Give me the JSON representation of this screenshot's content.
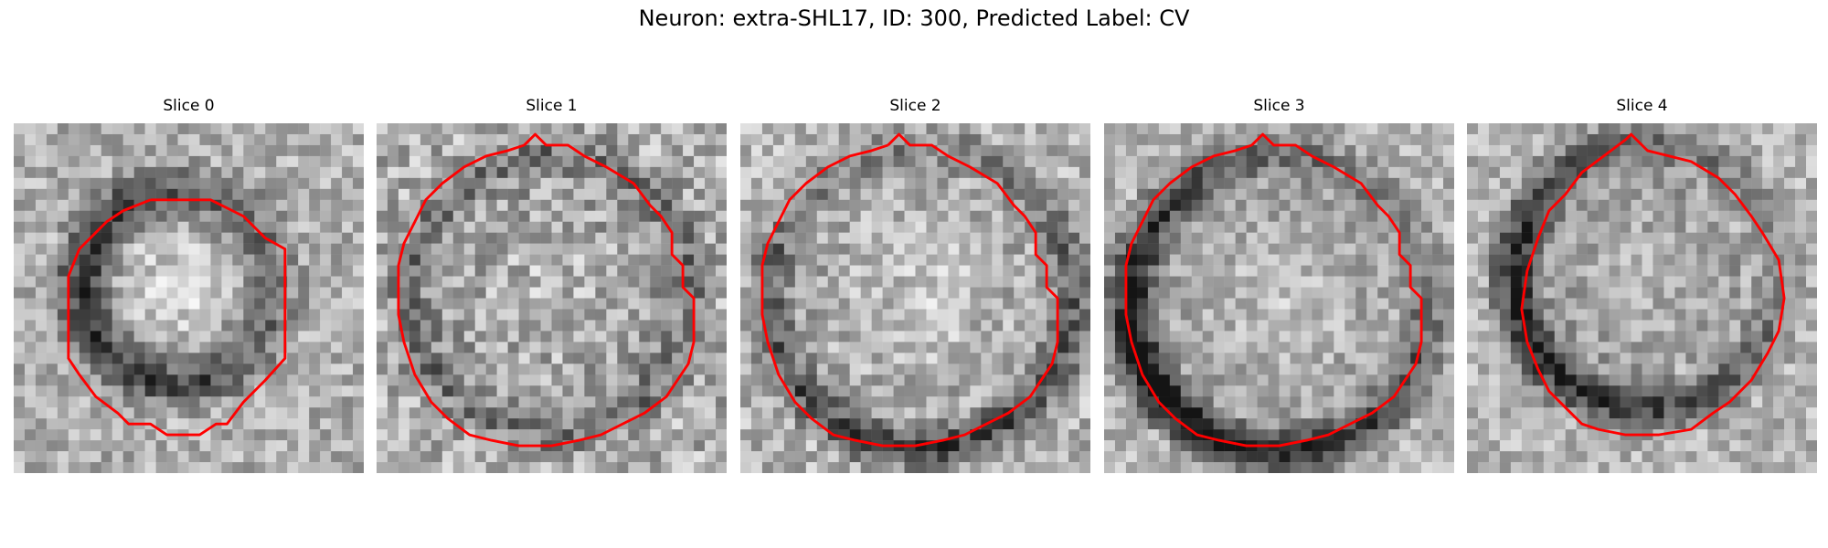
{
  "figure": {
    "title": "Neuron: extra-SHL17, ID: 300, Predicted Label: CV"
  },
  "contour_color": "#ff0000",
  "panels": [
    {
      "title": "Slice 0",
      "contour": "contour-small-offcenter"
    },
    {
      "title": "Slice 1",
      "contour": "contour-large"
    },
    {
      "title": "Slice 2",
      "contour": "contour-large"
    },
    {
      "title": "Slice 3",
      "contour": "contour-large"
    },
    {
      "title": "Slice 4",
      "contour": "contour-medium"
    }
  ]
}
